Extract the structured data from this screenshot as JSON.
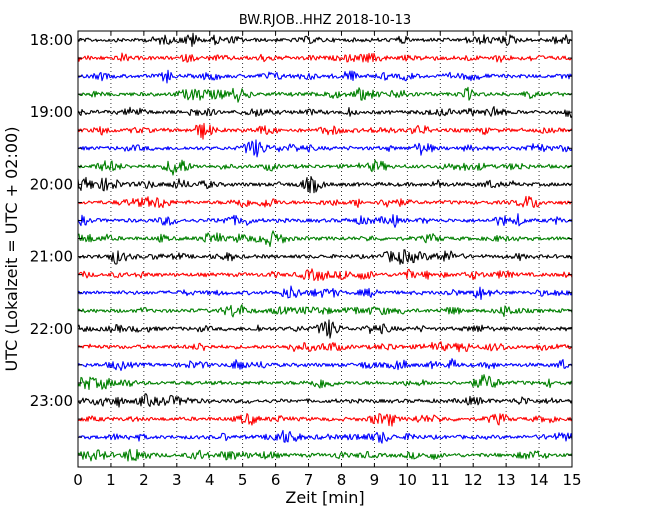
{
  "chart_data": {
    "type": "line",
    "subtype": "dayplot-seismogram",
    "title": "BW.RJOB..HHZ 2018-10-13",
    "xlabel": "Zeit  [min]",
    "ylabel": "UTC (Lokalzeit = UTC + 02:00)",
    "xlim": [
      0,
      15
    ],
    "x_ticks": [
      "0",
      "1",
      "2",
      "3",
      "4",
      "5",
      "6",
      "7",
      "8",
      "9",
      "10",
      "11",
      "12",
      "13",
      "14",
      "15"
    ],
    "y_tick_labels": [
      "18:00",
      "19:00",
      "20:00",
      "21:00",
      "22:00",
      "23:00"
    ],
    "minutes_per_line": 15,
    "trace_count": 24,
    "trace_colors": [
      "#000000",
      "#ff0000",
      "#0000ff",
      "#008000"
    ],
    "grid": "vertical dotted at each minute",
    "legend": "none"
  }
}
